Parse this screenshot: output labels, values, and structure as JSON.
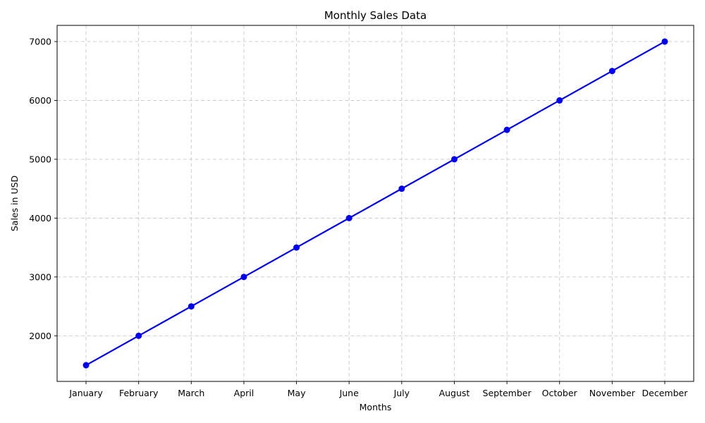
{
  "chart_data": {
    "type": "line",
    "title": "Monthly Sales Data",
    "xlabel": "Months",
    "ylabel": "Sales in USD",
    "categories": [
      "January",
      "February",
      "March",
      "April",
      "May",
      "June",
      "July",
      "August",
      "September",
      "October",
      "November",
      "December"
    ],
    "series": [
      {
        "values": [
          1500,
          2000,
          2500,
          3000,
          3500,
          4000,
          4500,
          5000,
          5500,
          6000,
          6500,
          7000
        ],
        "color": "#0000ee",
        "marker": "circle"
      }
    ],
    "ylim": [
      1225,
      7275
    ],
    "yticks": [
      2000,
      3000,
      4000,
      5000,
      6000,
      7000
    ],
    "grid": true,
    "grid_style": "dashed"
  }
}
